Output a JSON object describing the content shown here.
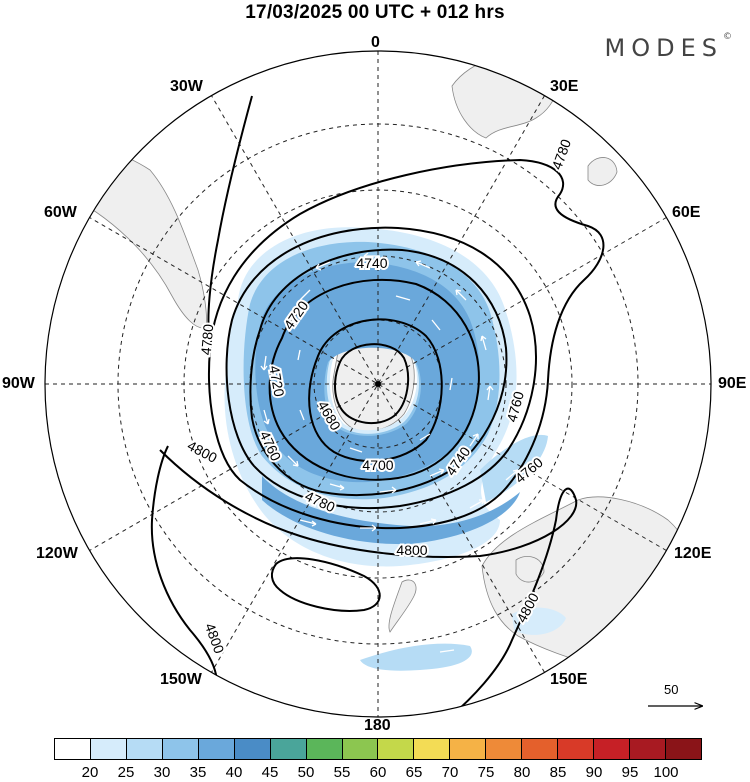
{
  "header": {
    "title": "17/03/2025  00 UTC  + 012 hrs",
    "brand": "MODES",
    "brand_mark": "©"
  },
  "longitude_labels": {
    "lon_0": "0",
    "lon_30e": "30E",
    "lon_60e": "60E",
    "lon_90e": "90E",
    "lon_120e": "120E",
    "lon_150e": "150E",
    "lon_180": "180",
    "lon_150w": "150W",
    "lon_120w": "120W",
    "lon_90w": "90W",
    "lon_60w": "60W",
    "lon_30w": "30W"
  },
  "contour_labels": {
    "c4780_top": "4780",
    "c4740_inner": "4740",
    "c4720_a": "4720",
    "c4780_left": "4780",
    "c4720_b": "4720",
    "c4680": "4680",
    "c4760_left": "4760",
    "c4700": "4700",
    "c4740_right": "4740",
    "c4760_right": "4760",
    "c4760_lower": "4760",
    "c4800_left": "4800",
    "c4780_lower": "4780",
    "c4800_bottom": "4800",
    "c4800_nz": "4800",
    "c4800_sw": "4800"
  },
  "vector_scale": {
    "label": "50"
  },
  "colorbar": {
    "colors": [
      "#ffffff",
      "#d6ecfb",
      "#b6dcf5",
      "#8ec4ea",
      "#6aa8db",
      "#4a8cc6",
      "#4aa59a",
      "#5bb65a",
      "#8cc650",
      "#c4d84a",
      "#f3dc55",
      "#f5b246",
      "#ee8a38",
      "#e4602c",
      "#d83a28",
      "#c62026",
      "#a81a22",
      "#8a1418"
    ],
    "ticks": [
      "20",
      "25",
      "30",
      "35",
      "40",
      "45",
      "50",
      "55",
      "60",
      "65",
      "70",
      "75",
      "80",
      "85",
      "90",
      "95",
      "100"
    ]
  }
}
